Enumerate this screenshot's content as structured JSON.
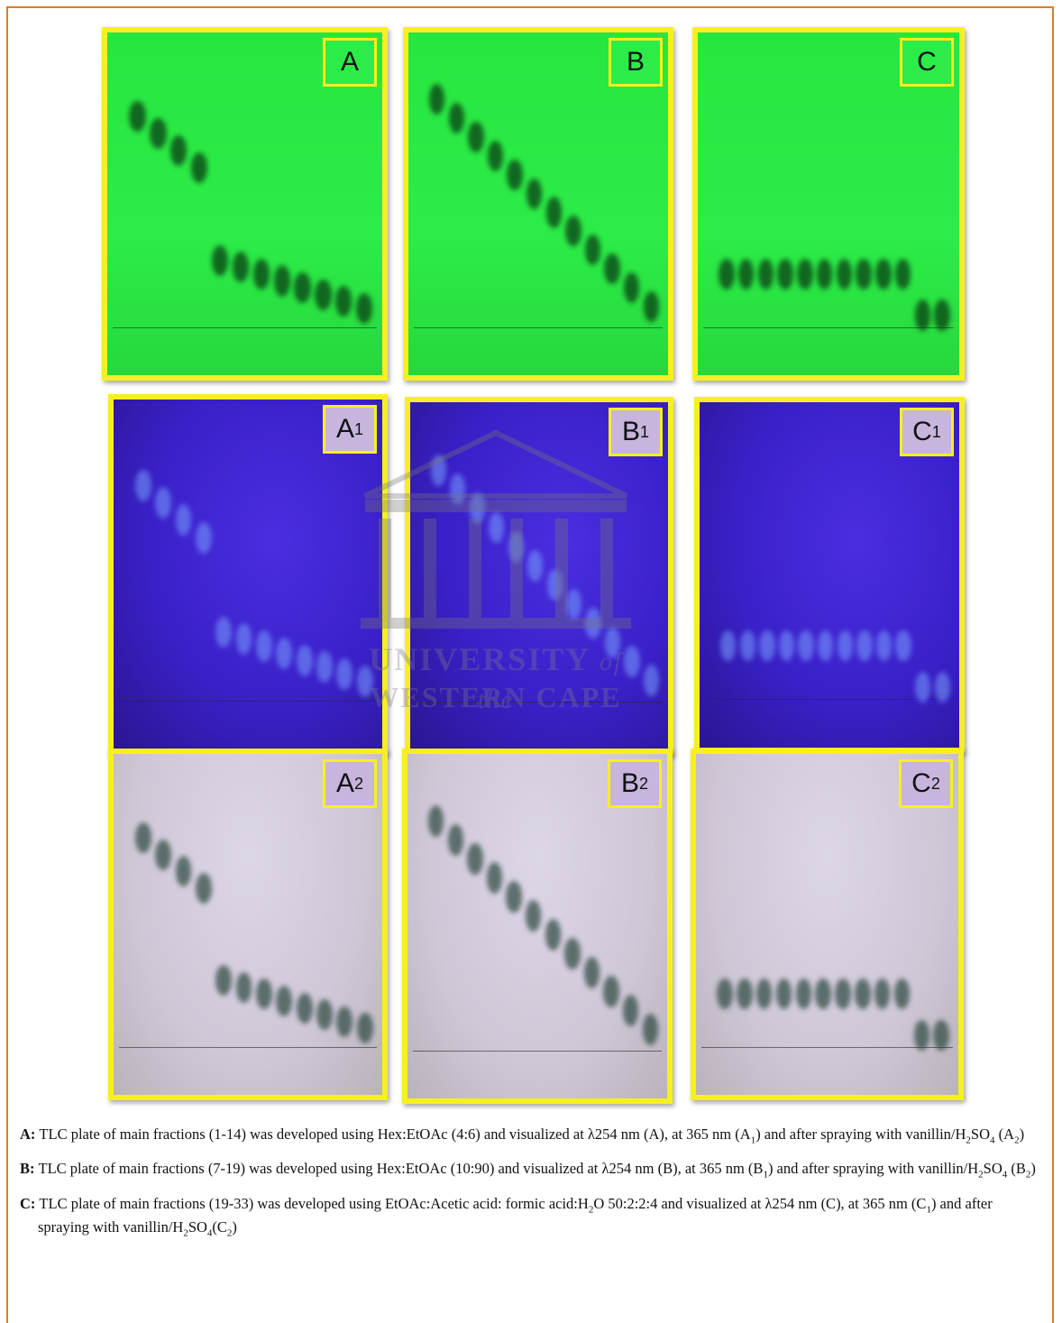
{
  "panels": [
    {
      "letter": "A"
    },
    {
      "letter": "B"
    },
    {
      "letter": "C"
    },
    {
      "letter": "A",
      "sub": "1"
    },
    {
      "letter": "B",
      "sub": "1"
    },
    {
      "letter": "C",
      "sub": "1"
    },
    {
      "letter": "A",
      "sub": "2"
    },
    {
      "letter": "B",
      "sub": "2"
    },
    {
      "letter": "C",
      "sub": "2"
    }
  ],
  "watermark": {
    "line1": "UNIVERSITY",
    "line1_italic": "of the",
    "line2": "WESTERN CAPE"
  },
  "captions": [
    {
      "label": "A:",
      "runs": [
        {
          "t": "TLC plate of main fractions (1-14) was developed using Hex:EtOAc (4:6) and visualized at λ254 nm (A), at 365 nm (A"
        },
        {
          "sub": "1"
        },
        {
          "t": ") and after spraying with vanillin/H"
        },
        {
          "sub": "2"
        },
        {
          "t": "SO"
        },
        {
          "sub": "4"
        },
        {
          "t": " (A"
        },
        {
          "sub": "2"
        },
        {
          "t": ")"
        }
      ]
    },
    {
      "label": "B:",
      "runs": [
        {
          "t": "TLC plate of main fractions (7-19) was developed using Hex:EtOAc (10:90) and visualized at λ254 nm (B), at 365 nm (B"
        },
        {
          "sub": "1"
        },
        {
          "t": ") and after spraying with vanillin/H"
        },
        {
          "sub": "2"
        },
        {
          "t": "SO"
        },
        {
          "sub": "4"
        },
        {
          "t": " (B"
        },
        {
          "sub": "2"
        },
        {
          "t": ")"
        }
      ]
    },
    {
      "label": "C:",
      "runs": [
        {
          "t": "TLC plate of main fractions (19-33) was developed using EtOAc:Acetic acid: formic acid:H"
        },
        {
          "sub": "2"
        },
        {
          "t": "O 50:2:2:4 and visualized at λ254 nm (C), at 365 nm (C"
        },
        {
          "sub": "1"
        },
        {
          "t": ") and after spraying with vanillin/H"
        },
        {
          "sub": "2"
        },
        {
          "t": "SO"
        },
        {
          "sub": "4"
        },
        {
          "t": "(C"
        },
        {
          "sub": "2"
        },
        {
          "t": ")"
        }
      ]
    }
  ]
}
